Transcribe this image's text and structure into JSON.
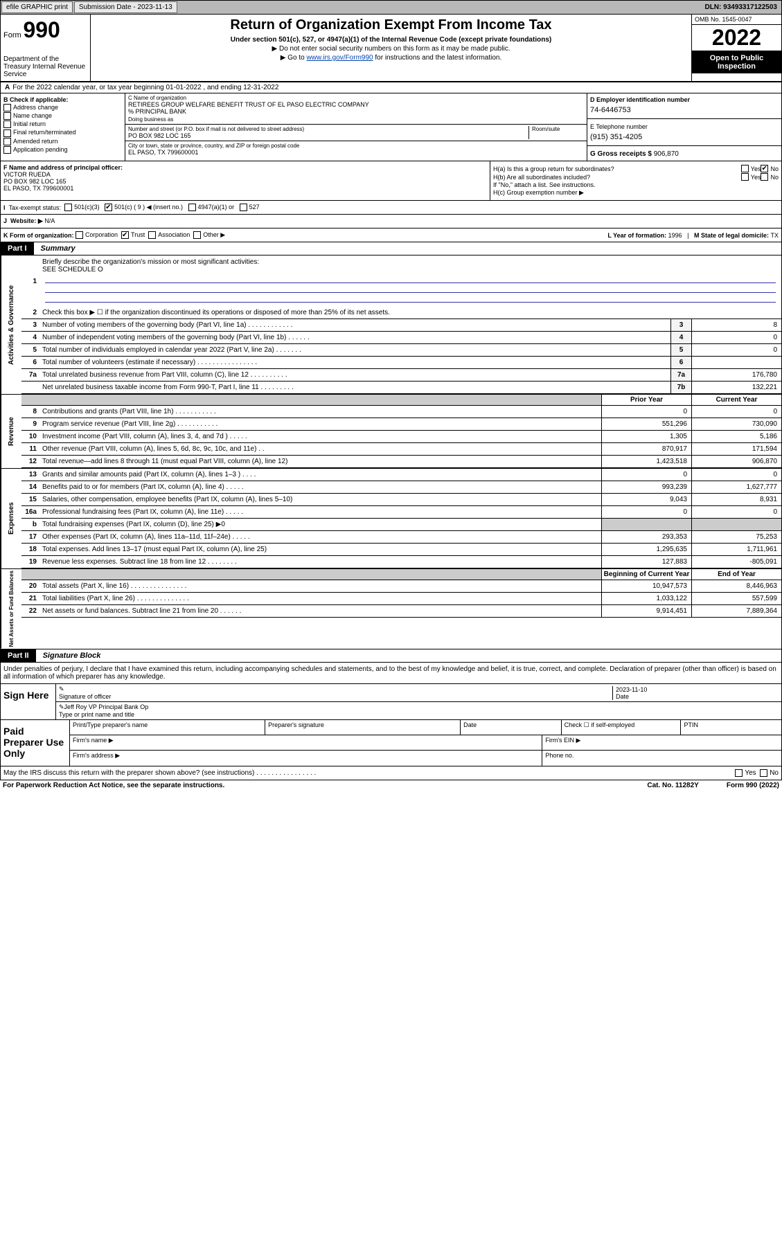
{
  "topbar": {
    "efile": "efile GRAPHIC print",
    "submission_label": "Submission Date - 2023-11-13",
    "dln": "DLN: 93493317122503"
  },
  "header": {
    "form_label": "Form",
    "form_number": "990",
    "title": "Return of Organization Exempt From Income Tax",
    "sub1": "Under section 501(c), 527, or 4947(a)(1) of the Internal Revenue Code (except private foundations)",
    "sub2": "▶ Do not enter social security numbers on this form as it may be made public.",
    "sub3_pre": "▶ Go to ",
    "sub3_link": "www.irs.gov/Form990",
    "sub3_post": " for instructions and the latest information.",
    "omb": "OMB No. 1545-0047",
    "year": "2022",
    "open": "Open to Public Inspection",
    "dept": "Department of the Treasury Internal Revenue Service"
  },
  "section_a": "For the 2022 calendar year, or tax year beginning 01-01-2022  , and ending 12-31-2022",
  "b": {
    "label": "B Check if applicable:",
    "opts": [
      "Address change",
      "Name change",
      "Initial return",
      "Final return/terminated",
      "Amended return",
      "Application pending"
    ]
  },
  "c": {
    "name_label": "C Name of organization",
    "name": "RETIREES GROUP WELFARE BENEFIT TRUST OF EL PASO ELECTRIC COMPANY",
    "care_of": "% PRINCIPAL BANK",
    "dba_label": "Doing business as",
    "street_label": "Number and street (or P.O. box if mail is not delivered to street address)",
    "room_label": "Room/suite",
    "street": "PO BOX 982 LOC 165",
    "city_label": "City or town, state or province, country, and ZIP or foreign postal code",
    "city": "EL PASO, TX  799600001"
  },
  "d": {
    "ein_label": "D Employer identification number",
    "ein": "74-6446753",
    "phone_label": "E Telephone number",
    "phone": "(915) 351-4205",
    "gross_label": "G Gross receipts $",
    "gross": "906,870"
  },
  "f": {
    "label": "F Name and address of principal officer:",
    "name": "VICTOR RUEDA",
    "street": "PO BOX 982 LOC 165",
    "city": "EL PASO, TX  799600001"
  },
  "h": {
    "ha": "H(a)  Is this a group return for subordinates?",
    "ha_ans_yes": "Yes",
    "ha_ans_no": "No",
    "hb": "H(b)  Are all subordinates included?",
    "hb_note": "If \"No,\" attach a list. See instructions.",
    "hc": "H(c)  Group exemption number ▶"
  },
  "i": {
    "label": "Tax-exempt status:",
    "opts": [
      "501(c)(3)",
      "501(c) ( 9 ) ◀ (insert no.)",
      "4947(a)(1) or",
      "527"
    ]
  },
  "j": {
    "label": "Website: ▶",
    "val": "N/A"
  },
  "k": {
    "label": "K Form of organization:",
    "opts": [
      "Corporation",
      "Trust",
      "Association",
      "Other ▶"
    ],
    "l_label": "L Year of formation: ",
    "l_val": "1996",
    "m_label": "M State of legal domicile: ",
    "m_val": "TX"
  },
  "part1": {
    "tab": "Part I",
    "title": "Summary"
  },
  "mission": {
    "num": "1",
    "label": "Briefly describe the organization's mission or most significant activities:",
    "text": "SEE SCHEDULE O"
  },
  "gov_lines": [
    {
      "num": "2",
      "desc": "Check this box ▶ ☐  if the organization discontinued its operations or disposed of more than 25% of its net assets.",
      "box": "",
      "val": ""
    },
    {
      "num": "3",
      "desc": "Number of voting members of the governing body (Part VI, line 1a)  .  .  .  .  .  .  .  .  .  .  .  .",
      "box": "3",
      "val": "8"
    },
    {
      "num": "4",
      "desc": "Number of independent voting members of the governing body (Part VI, line 1b)  .  .  .  .  .  .",
      "box": "4",
      "val": "0"
    },
    {
      "num": "5",
      "desc": "Total number of individuals employed in calendar year 2022 (Part V, line 2a)  .  .  .  .  .  .  .",
      "box": "5",
      "val": "0"
    },
    {
      "num": "6",
      "desc": "Total number of volunteers (estimate if necessary)  .  .  .  .  .  .  .  .  .  .  .  .  .  .  .  .",
      "box": "6",
      "val": ""
    },
    {
      "num": "7a",
      "desc": "Total unrelated business revenue from Part VIII, column (C), line 12  .  .  .  .  .  .  .  .  .  .",
      "box": "7a",
      "val": "176,780"
    },
    {
      "num": "",
      "desc": "Net unrelated business taxable income from Form 990-T, Part I, line 11  .  .  .  .  .  .  .  .  .",
      "box": "7b",
      "val": "132,221"
    }
  ],
  "rev_hdr": {
    "prior": "Prior Year",
    "current": "Current Year"
  },
  "rev_lines": [
    {
      "num": "8",
      "desc": "Contributions and grants (Part VIII, line 1h)  .  .  .  .  .  .  .  .  .  .  .",
      "prior": "0",
      "current": "0"
    },
    {
      "num": "9",
      "desc": "Program service revenue (Part VIII, line 2g)  .  .  .  .  .  .  .  .  .  .  .",
      "prior": "551,296",
      "current": "730,090"
    },
    {
      "num": "10",
      "desc": "Investment income (Part VIII, column (A), lines 3, 4, and 7d )  .  .  .  .  .",
      "prior": "1,305",
      "current": "5,186"
    },
    {
      "num": "11",
      "desc": "Other revenue (Part VIII, column (A), lines 5, 6d, 8c, 9c, 10c, and 11e)  .  .",
      "prior": "870,917",
      "current": "171,594"
    },
    {
      "num": "12",
      "desc": "Total revenue—add lines 8 through 11 (must equal Part VIII, column (A), line 12)",
      "prior": "1,423,518",
      "current": "906,870"
    }
  ],
  "exp_lines": [
    {
      "num": "13",
      "desc": "Grants and similar amounts paid (Part IX, column (A), lines 1–3 )  .  .  .  .",
      "prior": "0",
      "current": "0"
    },
    {
      "num": "14",
      "desc": "Benefits paid to or for members (Part IX, column (A), line 4)  .  .  .  .  .",
      "prior": "993,239",
      "current": "1,627,777"
    },
    {
      "num": "15",
      "desc": "Salaries, other compensation, employee benefits (Part IX, column (A), lines 5–10)",
      "prior": "9,043",
      "current": "8,931"
    },
    {
      "num": "16a",
      "desc": "Professional fundraising fees (Part IX, column (A), line 11e)  .  .  .  .  .",
      "prior": "0",
      "current": "0"
    },
    {
      "num": "b",
      "desc": "Total fundraising expenses (Part IX, column (D), line 25) ▶0",
      "prior": "",
      "current": "",
      "shaded": true
    },
    {
      "num": "17",
      "desc": "Other expenses (Part IX, column (A), lines 11a–11d, 11f–24e)  .  .  .  .  .",
      "prior": "293,353",
      "current": "75,253"
    },
    {
      "num": "18",
      "desc": "Total expenses. Add lines 13–17 (must equal Part IX, column (A), line 25)",
      "prior": "1,295,635",
      "current": "1,711,961"
    },
    {
      "num": "19",
      "desc": "Revenue less expenses. Subtract line 18 from line 12  .  .  .  .  .  .  .  .",
      "prior": "127,883",
      "current": "-805,091"
    }
  ],
  "na_hdr": {
    "begin": "Beginning of Current Year",
    "end": "End of Year"
  },
  "na_lines": [
    {
      "num": "20",
      "desc": "Total assets (Part X, line 16)  .  .  .  .  .  .  .  .  .  .  .  .  .  .  .",
      "prior": "10,947,573",
      "current": "8,446,963"
    },
    {
      "num": "21",
      "desc": "Total liabilities (Part X, line 26)  .  .  .  .  .  .  .  .  .  .  .  .  .  .",
      "prior": "1,033,122",
      "current": "557,599"
    },
    {
      "num": "22",
      "desc": "Net assets or fund balances. Subtract line 21 from line 20  .  .  .  .  .  .",
      "prior": "9,914,451",
      "current": "7,889,364"
    }
  ],
  "part2": {
    "tab": "Part II",
    "title": "Signature Block"
  },
  "sig": {
    "text": "Under penalties of perjury, I declare that I have examined this return, including accompanying schedules and statements, and to the best of my knowledge and belief, it is true, correct, and complete. Declaration of preparer (other than officer) is based on all information of which preparer has any knowledge.",
    "sign_here": "Sign Here",
    "sig_officer": "Signature of officer",
    "date_label": "Date",
    "date_val": "2023-11-10",
    "name": "Jeff Roy VP Principal Bank Op",
    "name_label": "Type or print name and title"
  },
  "paid": {
    "label": "Paid Preparer Use Only",
    "h1": "Print/Type preparer's name",
    "h2": "Preparer's signature",
    "h3": "Date",
    "h4": "Check ☐ if self-employed",
    "h5": "PTIN",
    "firm_name": "Firm's name  ▶",
    "firm_ein": "Firm's EIN ▶",
    "firm_addr": "Firm's address ▶",
    "phone": "Phone no."
  },
  "footer": {
    "q": "May the IRS discuss this return with the preparer shown above? (see instructions)  .  .  .  .  .  .  .  .  .  .  .  .  .  .  .  .",
    "yes": "Yes",
    "no": "No",
    "paperwork": "For Paperwork Reduction Act Notice, see the separate instructions.",
    "cat": "Cat. No. 11282Y",
    "form": "Form 990 (2022)"
  },
  "vert_labels": {
    "gov": "Activities & Governance",
    "rev": "Revenue",
    "exp": "Expenses",
    "na": "Net Assets or Fund Balances"
  }
}
